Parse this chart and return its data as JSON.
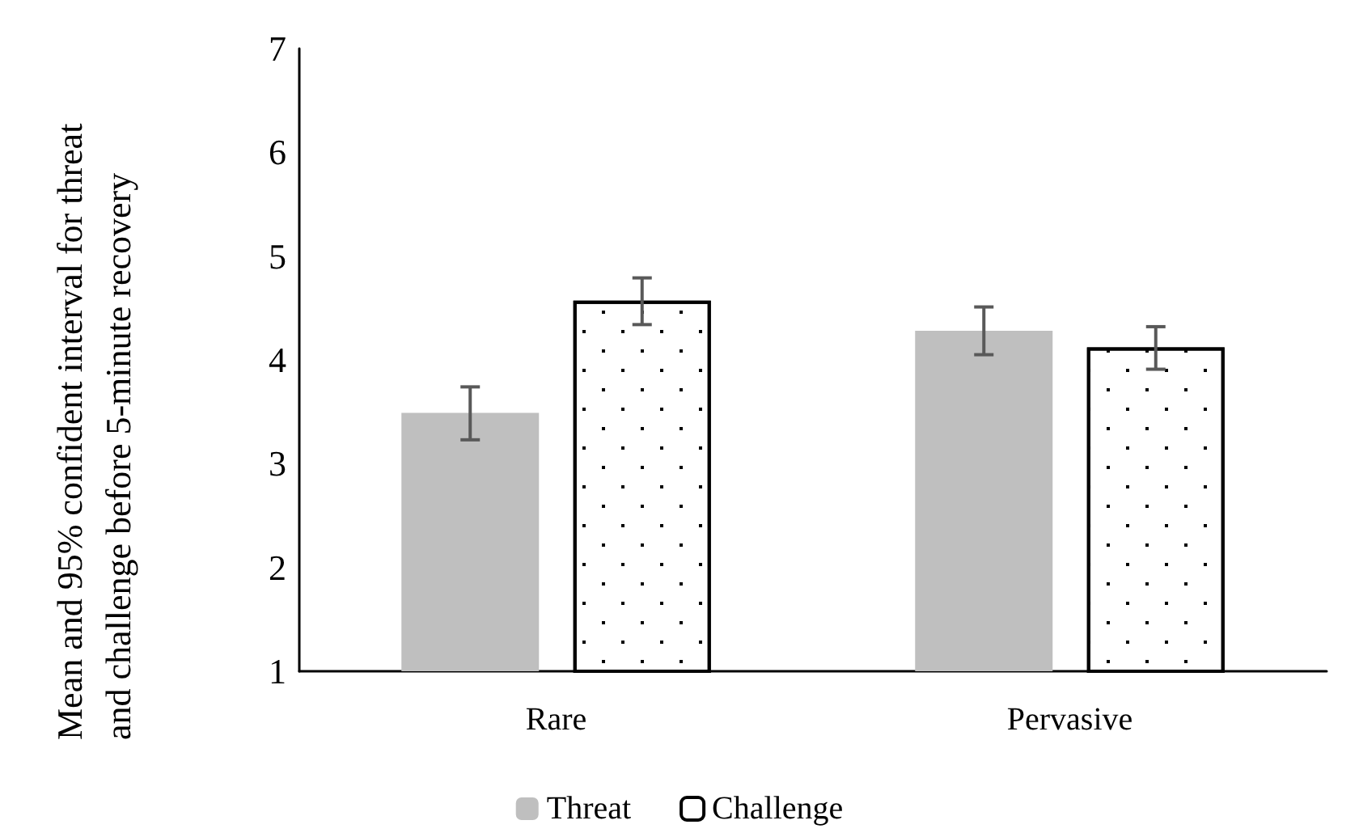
{
  "chart_data": {
    "type": "bar",
    "ylabel": "Mean and 95% confident interval for threat and challenge before 5-minute recovery",
    "categories": [
      "Rare",
      "Pervasive"
    ],
    "series": [
      {
        "name": "Threat",
        "color": "#bfbfbf",
        "values": [
          3.49,
          4.28
        ],
        "errors": [
          [
            3.23,
            3.74
          ],
          [
            4.05,
            4.51
          ]
        ]
      },
      {
        "name": "Challenge",
        "color": "#ffffff",
        "values": [
          4.57,
          4.12
        ],
        "errors": [
          [
            4.34,
            4.79
          ],
          [
            3.91,
            4.32
          ]
        ]
      }
    ],
    "ylim": [
      1,
      7
    ],
    "yticks": [
      1,
      2,
      3,
      4,
      5,
      6,
      7
    ],
    "grid": false,
    "legend": "bottom"
  }
}
